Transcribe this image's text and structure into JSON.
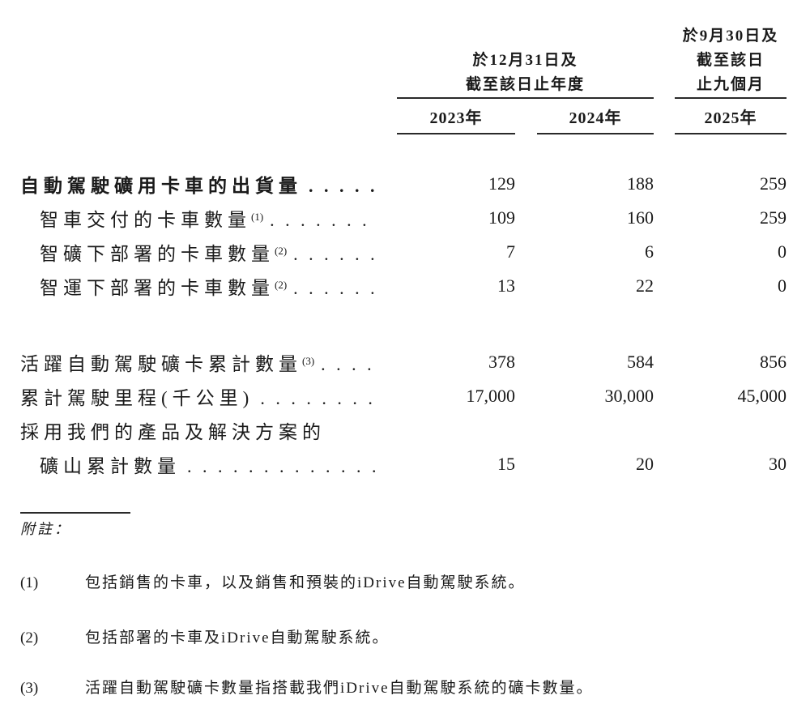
{
  "page": {
    "background_color": "#ffffff",
    "text_color": "#1a1a1a",
    "rule_color": "#2a2a2a"
  },
  "table": {
    "column_groups": [
      {
        "lines": [
          "於12月31日及",
          "截至該日止年度"
        ],
        "span_years": [
          "2023年",
          "2024年"
        ]
      },
      {
        "lines": [
          "於9月30日及",
          "截至該日",
          "止九個月"
        ],
        "span_years": [
          "2025年"
        ]
      }
    ],
    "year_headers": [
      "2023年",
      "2024年",
      "2025年"
    ],
    "rows": [
      {
        "label": "自動駕駛礦用卡車的出貨量",
        "sup": "",
        "bold": true,
        "indent": false,
        "leader": true,
        "gap_after": false,
        "values": [
          "129",
          "188",
          "259"
        ]
      },
      {
        "label": "智車交付的卡車數量",
        "sup": "(1)",
        "bold": false,
        "indent": true,
        "leader": true,
        "gap_after": false,
        "values": [
          "109",
          "160",
          "259"
        ]
      },
      {
        "label": "智礦下部署的卡車數量",
        "sup": "(2)",
        "bold": false,
        "indent": true,
        "leader": true,
        "gap_after": false,
        "values": [
          "7",
          "6",
          "0"
        ]
      },
      {
        "label": "智運下部署的卡車數量",
        "sup": "(2)",
        "bold": false,
        "indent": true,
        "leader": true,
        "gap_after": true,
        "values": [
          "13",
          "22",
          "0"
        ]
      },
      {
        "label": "活躍自動駕駛礦卡累計數量",
        "sup": "(3)",
        "bold": false,
        "indent": false,
        "leader": true,
        "gap_after": false,
        "values": [
          "378",
          "584",
          "856"
        ]
      },
      {
        "label": "累計駕駛里程(千公里)",
        "sup": "",
        "bold": false,
        "indent": false,
        "leader": true,
        "gap_after": false,
        "values": [
          "17,000",
          "30,000",
          "45,000"
        ]
      },
      {
        "label": "採用我們的產品及解決方案的",
        "sup": "",
        "bold": false,
        "indent": false,
        "leader": false,
        "gap_after": false,
        "values": [
          "",
          "",
          ""
        ]
      },
      {
        "label": "礦山累計數量",
        "sup": "",
        "bold": false,
        "indent": true,
        "leader": true,
        "gap_after": false,
        "values": [
          "15",
          "20",
          "30"
        ]
      }
    ]
  },
  "notes": {
    "heading": "附註：",
    "items": [
      {
        "num": "(1)",
        "text": "包括銷售的卡車，以及銷售和預裝的iDrive自動駕駛系統。"
      },
      {
        "num": "(2)",
        "text": "包括部署的卡車及iDrive自動駕駛系統。"
      },
      {
        "num": "(3)",
        "text": "活躍自動駕駛礦卡數量指搭載我們iDrive自動駕駛系統的礦卡數量。"
      }
    ]
  }
}
